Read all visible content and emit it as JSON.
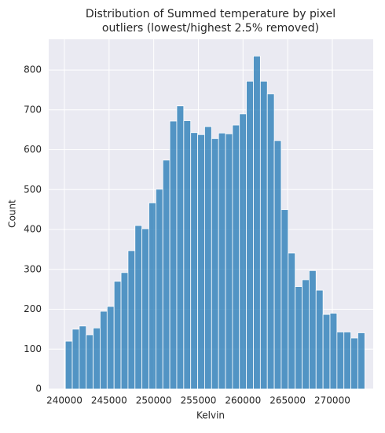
{
  "chart_data": {
    "type": "histogram",
    "title": [
      "Distribution of Summed temperature by pixel",
      "outliers (lowest/highest 2.5% removed)"
    ],
    "x_label": "Kelvin",
    "y_label": "Count",
    "bins": [
      240100,
      240880,
      241660,
      242440,
      243220,
      244000,
      244780,
      245560,
      246340,
      247120,
      247900,
      248680,
      249460,
      250240,
      251020,
      251800,
      252580,
      253360,
      254140,
      254920,
      255700,
      256480,
      257260,
      258040,
      258820,
      259600,
      260380,
      261160,
      261940,
      262720,
      263500,
      264280,
      265060,
      265840,
      266620,
      267400,
      268180,
      268960,
      269740,
      270520,
      271300,
      272080,
      272860,
      273640
    ],
    "counts": [
      120,
      150,
      158,
      136,
      153,
      195,
      207,
      270,
      292,
      347,
      410,
      402,
      467,
      501,
      574,
      672,
      710,
      673,
      643,
      638,
      658,
      628,
      642,
      640,
      662,
      690,
      772,
      835,
      772,
      740,
      623,
      450,
      341,
      257,
      274,
      297,
      248,
      187,
      190,
      143,
      143,
      128,
      141
    ],
    "color": "#1f77b4",
    "xlim": [
      238240,
      274580
    ],
    "ylim": [
      0,
      877
    ],
    "xticks": [
      240000,
      245000,
      250000,
      255000,
      260000,
      265000,
      270000
    ],
    "yticks": [
      0,
      100,
      200,
      300,
      400,
      500,
      600,
      700,
      800
    ],
    "grid": true
  }
}
